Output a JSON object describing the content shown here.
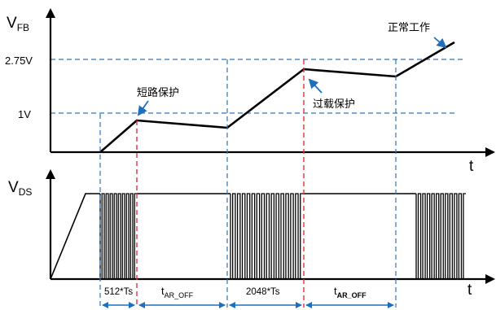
{
  "top_panel": {
    "y_label_main": "V",
    "y_label_sub": "FB",
    "x_label": "t",
    "level_high": "2.75V",
    "level_low": "1V",
    "annotations": {
      "short_protect": "短路保护",
      "over_load_protect": "过载保护",
      "normal_work": "正常工作"
    }
  },
  "bottom_panel": {
    "y_label_main": "V",
    "y_label_sub": "DS",
    "x_label": "t",
    "intervals": [
      {
        "main": "512*Ts",
        "sub": ""
      },
      {
        "main": "t",
        "sub": "AR_OFF"
      },
      {
        "main": "2048*Ts",
        "sub": ""
      },
      {
        "main": "t",
        "sub": "AR_OFF"
      }
    ]
  },
  "colors": {
    "axis": "#000000",
    "trace": "#000000",
    "guide_blue": "#2e75b6",
    "guide_red": "#e8313c",
    "arrow_blue": "#1f6fbd"
  }
}
